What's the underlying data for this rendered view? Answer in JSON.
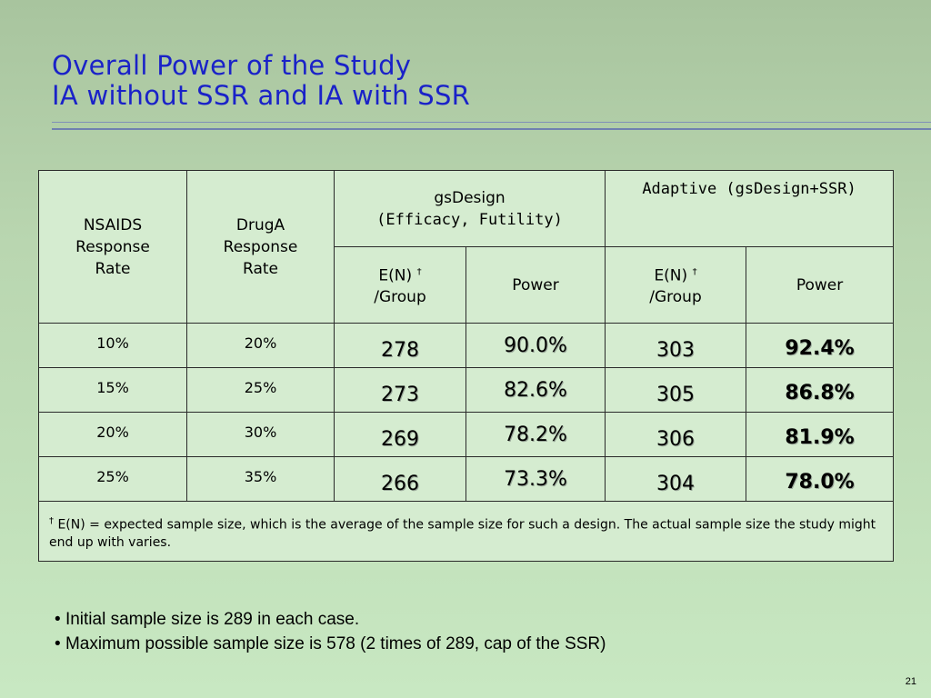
{
  "slide": {
    "title_line1": "Overall Power of the Study",
    "title_line2": "IA without SSR and IA with SSR",
    "page_number": "21"
  },
  "table": {
    "col_nsaids": [
      "NSAIDS",
      "Response",
      "Rate"
    ],
    "col_druga": [
      "DrugA",
      "Response",
      "Rate"
    ],
    "group_gsdesign": [
      "gsDesign",
      "(Efficacy, Futility)"
    ],
    "group_adaptive": "Adaptive (gsDesign+SSR)",
    "sub_en_line1": "E(N)",
    "dagger": "†",
    "sub_en_line2": "/Group",
    "sub_power": "Power",
    "rows": [
      {
        "nsaids": "10%",
        "druga": "20%",
        "gs_en": "278",
        "gs_power": "90.0%",
        "ad_en": "303",
        "ad_power": "92.4%"
      },
      {
        "nsaids": "15%",
        "druga": "25%",
        "gs_en": "273",
        "gs_power": "82.6%",
        "ad_en": "305",
        "ad_power": "86.8%"
      },
      {
        "nsaids": "20%",
        "druga": "30%",
        "gs_en": "269",
        "gs_power": "78.2%",
        "ad_en": "306",
        "ad_power": "81.9%"
      },
      {
        "nsaids": "25%",
        "druga": "35%",
        "gs_en": "266",
        "gs_power": "73.3%",
        "ad_en": "304",
        "ad_power": "78.0%"
      }
    ],
    "footnote_dagger": "†",
    "footnote": " E(N) = expected sample size, which is the average of the sample size for such a design. The actual sample size the study might end up with varies."
  },
  "bullets": [
    "Initial sample size is 289 in each case.",
    "Maximum possible sample size is 578 (2 times of 289, cap of the SSR)"
  ],
  "colors": {
    "title": "#1a22c8",
    "gsdesign_power": "#d48a00",
    "adaptive_power": "#1a22c8"
  }
}
